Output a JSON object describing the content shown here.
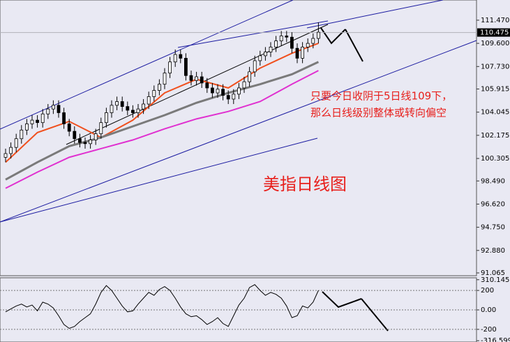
{
  "chart_data": {
    "type": "candlestick",
    "title": "美指日线图",
    "annotations": [
      "只要今日收阴于5日线109下，",
      "那么日线级别整体或转向偏空"
    ],
    "up_color": "#ffffff",
    "down_color": "#000000",
    "open": [
      100.4,
      100.7,
      101.2,
      101.9,
      102.6,
      103.1,
      103.4,
      103.2,
      103.9,
      104.3,
      104.6,
      104.0,
      103.1,
      102.5,
      101.9,
      101.6,
      101.5,
      101.8,
      102.3,
      103.2,
      104.0,
      104.6,
      104.9,
      104.5,
      104.2,
      104.0,
      104.3,
      104.7,
      105.3,
      105.8,
      106.3,
      107.2,
      108.1,
      108.7,
      108.4,
      107.0,
      106.6,
      106.9,
      106.4,
      106.0,
      105.6,
      105.9,
      105.4,
      105.1,
      105.5,
      106.0,
      106.5,
      107.3,
      108.2,
      108.6,
      108.9,
      109.3,
      109.8,
      110.2,
      110.1,
      109.2,
      108.4,
      109.3,
      109.6,
      110.0
    ],
    "high": [
      101.1,
      101.6,
      102.3,
      103.0,
      103.5,
      103.8,
      103.8,
      104.3,
      104.7,
      105.0,
      105.0,
      104.4,
      103.5,
      102.9,
      102.3,
      102.0,
      102.2,
      102.7,
      103.6,
      104.4,
      105.0,
      105.3,
      105.3,
      104.9,
      104.6,
      104.7,
      105.1,
      105.7,
      106.2,
      106.7,
      107.6,
      108.5,
      109.1,
      109.1,
      108.8,
      107.4,
      107.3,
      107.3,
      106.8,
      106.4,
      106.3,
      106.3,
      105.8,
      105.9,
      106.4,
      106.9,
      107.7,
      108.6,
      109.0,
      109.3,
      109.7,
      110.2,
      110.6,
      110.6,
      110.5,
      109.6,
      109.7,
      110.0,
      110.4,
      111.3
    ],
    "low": [
      100.0,
      100.3,
      100.8,
      101.5,
      102.2,
      102.7,
      102.8,
      102.8,
      103.5,
      103.9,
      103.6,
      102.7,
      102.1,
      101.5,
      101.2,
      101.1,
      101.1,
      101.4,
      101.9,
      102.8,
      103.6,
      104.2,
      104.1,
      103.8,
      103.6,
      103.6,
      103.9,
      104.3,
      104.9,
      105.4,
      105.9,
      106.8,
      107.7,
      108.0,
      106.6,
      106.2,
      106.2,
      106.0,
      105.6,
      105.2,
      105.2,
      105.0,
      104.7,
      104.7,
      105.1,
      105.6,
      106.1,
      106.9,
      107.8,
      108.2,
      108.5,
      108.9,
      109.4,
      109.7,
      108.8,
      108.0,
      108.0,
      108.9,
      109.2,
      109.6
    ],
    "close": [
      100.7,
      101.2,
      101.9,
      102.6,
      103.1,
      103.4,
      103.2,
      103.9,
      104.3,
      104.6,
      104.0,
      103.1,
      102.5,
      101.9,
      101.6,
      101.5,
      101.8,
      102.3,
      103.2,
      104.0,
      104.6,
      104.9,
      104.5,
      104.2,
      104.0,
      104.3,
      104.7,
      105.3,
      105.8,
      106.3,
      107.2,
      108.1,
      108.7,
      108.4,
      107.0,
      106.6,
      106.9,
      106.4,
      106.0,
      105.6,
      105.9,
      105.4,
      105.1,
      105.5,
      106.0,
      106.5,
      107.3,
      108.2,
      108.6,
      108.9,
      109.3,
      109.8,
      110.2,
      110.1,
      109.2,
      108.4,
      109.3,
      109.6,
      110.0,
      110.5
    ],
    "ylim": [
      90.84,
      113.1
    ],
    "yticks": [
      {
        "value": 111.47,
        "label": "111.470"
      },
      {
        "value": 109.6,
        "label": "109.600"
      },
      {
        "value": 107.73,
        "label": "107.730"
      },
      105.915,
      104.045,
      102.175,
      100.305,
      {
        "value": 98.49,
        "label": "98.490"
      },
      {
        "value": 96.62,
        "label": "96.620"
      },
      {
        "value": 94.75,
        "label": "94.750"
      },
      {
        "value": 92.88,
        "label": "92.880"
      },
      91.065
    ],
    "last_price": 110.475,
    "moving_averages": [
      {
        "color": "#f0501e",
        "x": [
          0,
          6,
          12,
          18,
          24,
          30,
          36,
          42,
          48,
          54,
          59
        ],
        "values": [
          100.0,
          102.4,
          103.3,
          102.0,
          103.4,
          105.6,
          106.7,
          106.0,
          107.6,
          108.8,
          109.6
        ]
      },
      {
        "color": "#7a7a7a",
        "x": [
          0,
          6,
          12,
          18,
          24,
          30,
          36,
          42,
          48,
          54,
          59
        ],
        "values": [
          98.6,
          100.0,
          101.3,
          102.0,
          102.9,
          103.8,
          104.8,
          105.6,
          106.3,
          107.1,
          108.1
        ]
      },
      {
        "color": "#e030d0",
        "x": [
          0,
          6,
          12,
          18,
          24,
          30,
          36,
          42,
          48,
          54,
          59
        ],
        "values": [
          97.9,
          99.2,
          100.4,
          101.1,
          101.8,
          102.7,
          103.5,
          104.1,
          104.9,
          106.3,
          107.4
        ]
      }
    ],
    "oscillator": {
      "color": "#000000",
      "values": [
        -20,
        10,
        40,
        60,
        30,
        50,
        -10,
        80,
        60,
        20,
        -60,
        -150,
        -190,
        -170,
        -120,
        -80,
        -40,
        60,
        180,
        250,
        200,
        120,
        40,
        -20,
        -10,
        60,
        120,
        180,
        150,
        210,
        240,
        200,
        120,
        30,
        -40,
        -70,
        -60,
        -100,
        -150,
        -120,
        -80,
        -140,
        -170,
        -60,
        50,
        120,
        230,
        260,
        200,
        150,
        180,
        160,
        120,
        40,
        -80,
        -60,
        40,
        20,
        80,
        200
      ],
      "ylim": [
        -330,
        330
      ],
      "yticks": [
        310.145,
        200,
        {
          "value": 0,
          "label": "0.00"
        },
        -200,
        -316.5998
      ]
    }
  }
}
